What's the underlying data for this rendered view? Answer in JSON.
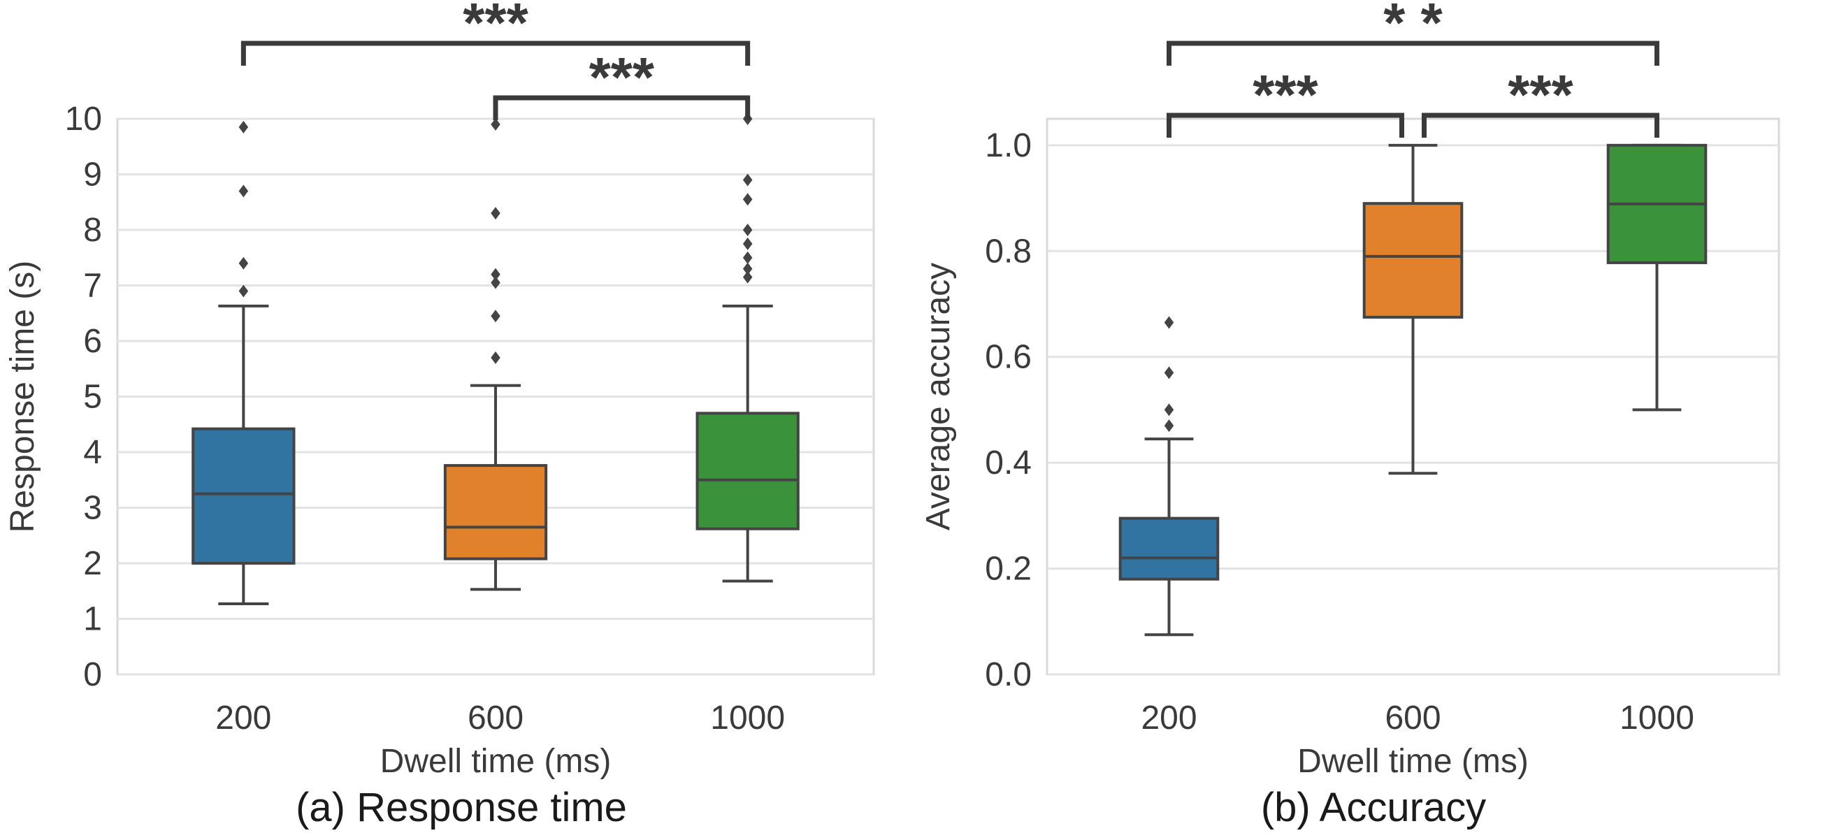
{
  "chart_data": [
    {
      "type": "box",
      "caption": "(a) Response time",
      "xlabel": "Dwell time (ms)",
      "ylabel": "Response time (s)",
      "categories": [
        "200",
        "600",
        "1000"
      ],
      "ylim": [
        0,
        10
      ],
      "yticks": [
        "0",
        "1",
        "2",
        "3",
        "4",
        "5",
        "6",
        "7",
        "8",
        "9",
        "10"
      ],
      "grid": true,
      "colors": [
        "#3274a1",
        "#e1812c",
        "#3a923a"
      ],
      "boxes": [
        {
          "category": "200",
          "whisker_low": 1.27,
          "q1": 2.0,
          "median": 3.25,
          "q3": 4.42,
          "whisker_high": 6.63,
          "outliers": [
            6.9,
            7.4,
            8.7,
            9.85
          ]
        },
        {
          "category": "600",
          "whisker_low": 1.53,
          "q1": 2.08,
          "median": 2.65,
          "q3": 3.76,
          "whisker_high": 5.2,
          "outliers": [
            5.7,
            6.45,
            7.05,
            7.2,
            8.3,
            9.9
          ]
        },
        {
          "category": "1000",
          "whisker_low": 1.68,
          "q1": 2.62,
          "median": 3.5,
          "q3": 4.7,
          "whisker_high": 6.63,
          "outliers": [
            7.15,
            7.3,
            7.5,
            7.75,
            8.0,
            8.55,
            8.9,
            10.0
          ]
        }
      ],
      "significance": [
        {
          "from": "200",
          "to": "1000",
          "label": "***"
        },
        {
          "from": "600",
          "to": "1000",
          "label": "***"
        }
      ]
    },
    {
      "type": "box",
      "caption": "(b) Accuracy",
      "xlabel": "Dwell time (ms)",
      "ylabel": "Average accuracy",
      "categories": [
        "200",
        "600",
        "1000"
      ],
      "ylim": [
        0,
        1.05
      ],
      "yticks": [
        "0.0",
        "0.2",
        "0.4",
        "0.6",
        "0.8",
        "1.0"
      ],
      "grid": true,
      "colors": [
        "#3274a1",
        "#e1812c",
        "#3a923a"
      ],
      "boxes": [
        {
          "category": "200",
          "whisker_low": 0.075,
          "q1": 0.18,
          "median": 0.22,
          "q3": 0.295,
          "whisker_high": 0.445,
          "outliers": [
            0.47,
            0.5,
            0.57,
            0.665
          ]
        },
        {
          "category": "600",
          "whisker_low": 0.38,
          "q1": 0.675,
          "median": 0.79,
          "q3": 0.89,
          "whisker_high": 1.0,
          "outliers": []
        },
        {
          "category": "1000",
          "whisker_low": 0.5,
          "q1": 0.778,
          "median": 0.889,
          "q3": 1.0,
          "whisker_high": 1.0,
          "outliers": []
        }
      ],
      "significance": [
        {
          "from": "200",
          "to": "600",
          "label": "***"
        },
        {
          "from": "600",
          "to": "1000",
          "label": "***"
        },
        {
          "from": "200",
          "to": "1000",
          "label": "* *"
        }
      ]
    }
  ]
}
